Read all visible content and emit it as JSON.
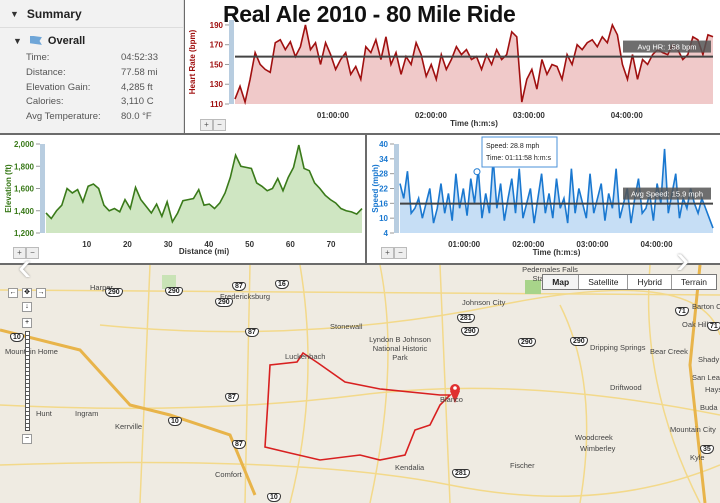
{
  "title": "Real Ale 2010 - 80 Mile Ride",
  "summary": {
    "heading": "Summary",
    "section": "Overall",
    "rows": [
      {
        "label": "Time:",
        "value": "04:52:33"
      },
      {
        "label": "Distance:",
        "value": "77.58 mi"
      },
      {
        "label": "Elevation Gain:",
        "value": "4,285 ft"
      },
      {
        "label": "Calories:",
        "value": "3,110 C"
      },
      {
        "label": "Avg Temperature:",
        "value": "80.0 °F"
      }
    ]
  },
  "zoom": {
    "in": "+",
    "out": "−"
  },
  "chart_data": [
    {
      "id": "hr",
      "type": "area",
      "ylabel": "Heart Rate (bpm)",
      "xlabel": "Time (h:m:s)",
      "yticks": [
        110,
        130,
        150,
        170,
        190
      ],
      "ylim": [
        110,
        195
      ],
      "xticks": [
        {
          "v": 1,
          "label": "01:00:00"
        },
        {
          "v": 2,
          "label": "02:00:00"
        },
        {
          "v": 3,
          "label": "03:00:00"
        },
        {
          "v": 4,
          "label": "04:00:00"
        }
      ],
      "xlim": [
        0,
        4.88
      ],
      "avg": 158,
      "avg_label": "Avg HR: 158 bpm",
      "color": "#a01010",
      "fill": "#f0c9c9",
      "values": [
        115,
        128,
        112,
        135,
        162,
        150,
        145,
        142,
        172,
        175,
        165,
        173,
        158,
        168,
        190,
        165,
        172,
        150,
        172,
        160,
        145,
        155,
        162,
        140,
        148,
        135,
        168,
        162,
        175,
        155,
        178,
        150,
        162,
        140,
        158,
        150,
        172,
        160,
        138,
        150,
        135,
        160,
        145,
        155,
        168,
        160,
        165,
        155,
        158,
        145,
        160,
        150,
        165,
        155,
        160,
        183,
        178,
        112,
        135,
        145,
        125,
        155,
        140,
        150,
        148,
        135,
        160,
        150,
        170,
        165,
        172,
        175,
        168,
        178,
        172,
        190,
        180,
        150,
        135,
        160,
        135,
        155,
        150,
        160,
        165,
        162,
        160,
        170,
        165,
        155,
        160,
        178,
        175,
        160,
        180,
        178
      ]
    },
    {
      "id": "elev",
      "type": "area",
      "ylabel": "Elevation (ft)",
      "xlabel": "Distance (mi)",
      "yticks": [
        1200,
        1400,
        1600,
        1800,
        2000
      ],
      "ylim": [
        1200,
        2000
      ],
      "xticks": [
        {
          "v": 10,
          "label": "10"
        },
        {
          "v": 20,
          "label": "20"
        },
        {
          "v": 30,
          "label": "30"
        },
        {
          "v": 40,
          "label": "40"
        },
        {
          "v": 50,
          "label": "50"
        },
        {
          "v": 60,
          "label": "60"
        },
        {
          "v": 70,
          "label": "70"
        }
      ],
      "xlim": [
        0,
        77.6
      ],
      "color": "#3a7a1a",
      "fill": "#cfe6c2",
      "values": [
        1380,
        1330,
        1400,
        1450,
        1600,
        1560,
        1590,
        1480,
        1620,
        1640,
        1600,
        1450,
        1400,
        1420,
        1390,
        1500,
        1420,
        1610,
        1500,
        1440,
        1380,
        1460,
        1350,
        1480,
        1300,
        1380,
        1490,
        1500,
        1510,
        1590,
        1450,
        1460,
        1420,
        1470,
        1560,
        1700,
        1900,
        1800,
        1790,
        1780,
        1650,
        1620,
        1580,
        1600,
        1690,
        1580,
        1700,
        1790,
        1990,
        1780,
        1760,
        1650,
        1600,
        1540,
        1500,
        1470,
        1420,
        1400,
        1390,
        1370,
        1420
      ]
    },
    {
      "id": "speed",
      "type": "area",
      "ylabel": "Speed (mph)",
      "xlabel": "Time (h:m:s)",
      "yticks": [
        4,
        10,
        16,
        22,
        28,
        34,
        40
      ],
      "ylim": [
        4,
        40
      ],
      "xticks": [
        {
          "v": 1,
          "label": "01:00:00"
        },
        {
          "v": 2,
          "label": "02:00:00"
        },
        {
          "v": 3,
          "label": "03:00:00"
        },
        {
          "v": 4,
          "label": "04:00:00"
        }
      ],
      "xlim": [
        0,
        4.88
      ],
      "avg": 15.9,
      "avg_label": "Avg Speed: 15.9 mph",
      "color": "#1a78d0",
      "fill": "#c6def5",
      "tooltip": {
        "speed": "Speed: 28.8 mph",
        "time": "Time: 01:11:58 h:m:s",
        "x": 1.2,
        "y": 28.8
      },
      "values": [
        24,
        18,
        29,
        12,
        14,
        18,
        10,
        16,
        22,
        8,
        14,
        24,
        12,
        20,
        9,
        28,
        14,
        22,
        11,
        26,
        16,
        30,
        10,
        20,
        12,
        34,
        14,
        24,
        9,
        18,
        26,
        12,
        30,
        10,
        16,
        22,
        8,
        18,
        28,
        12,
        20,
        10,
        26,
        14,
        18,
        8,
        30,
        12,
        22,
        16,
        10,
        28,
        12,
        18,
        24,
        9,
        20,
        14,
        30,
        10,
        16,
        22,
        8,
        18,
        26,
        12,
        14,
        20,
        9,
        24,
        16,
        38,
        12,
        20,
        28,
        10,
        18,
        14,
        22,
        16,
        12,
        18,
        14,
        10,
        6
      ]
    }
  ],
  "map": {
    "types": [
      "Map",
      "Satellite",
      "Hybrid",
      "Terrain"
    ],
    "places": [
      "Harper",
      "Fredericksburg",
      "Stonewall",
      "Luckenbach",
      "Lyndon B Johnson National Historic Park",
      "Johnson City",
      "Pedernales Falls State Park",
      "Dripping Springs",
      "Bear Creek",
      "Barton Creek",
      "Oak Hill",
      "Shady Hollow",
      "San Leanna",
      "Hays",
      "Buda",
      "Driftwood",
      "Mountain City",
      "Kyle",
      "Woodcreek",
      "Wimberley",
      "Fischer",
      "Kendalia",
      "Comfort",
      "Kerrville",
      "Ingram",
      "Hunt",
      "Mountain Home",
      "Blanco"
    ],
    "shields": [
      "290",
      "290",
      "290",
      "87",
      "16",
      "87",
      "87",
      "87",
      "281",
      "290",
      "290",
      "290",
      "281",
      "71",
      "71",
      "10",
      "10",
      "10",
      "35"
    ]
  }
}
